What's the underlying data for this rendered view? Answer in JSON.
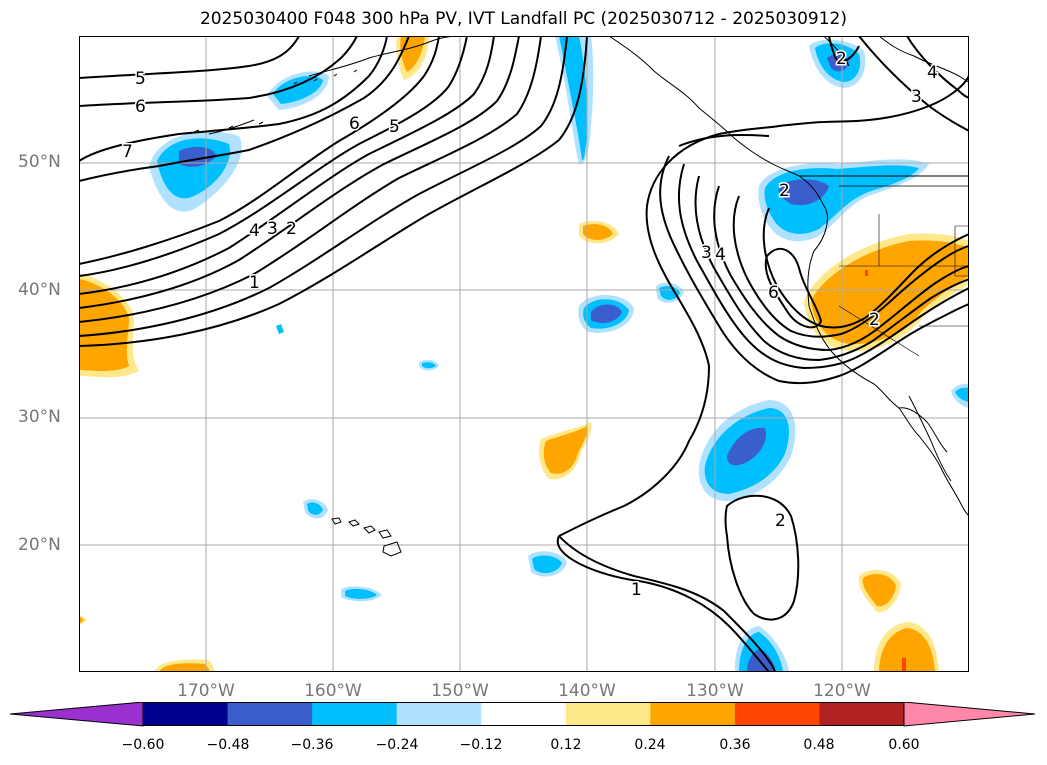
{
  "title": "2025030400 F048 300 hPa PV, IVT Landfall PC (2025030712 - 2025030912)",
  "map": {
    "lat_labels": [
      "50°N",
      "40°N",
      "30°N",
      "20°N"
    ],
    "lon_labels": [
      "170°W",
      "160°W",
      "150°W",
      "140°W",
      "130°W",
      "120°W"
    ],
    "contour_labels": [
      "5",
      "6",
      "7",
      "6",
      "5",
      "4",
      "3",
      "2",
      "1",
      "2",
      "4",
      "3",
      "2",
      "3",
      "4",
      "6",
      "2",
      "2",
      "1"
    ]
  },
  "colorbar": {
    "ticks": [
      "−0.60",
      "−0.48",
      "−0.36",
      "−0.24",
      "−0.12",
      "0.12",
      "0.24",
      "0.36",
      "0.48",
      "0.60"
    ],
    "colors": [
      "#9a30d0",
      "#000090",
      "#3a5fcd",
      "#00bfff",
      "#b0e2ff",
      "#ffffff",
      "#ffe88a",
      "#ffa500",
      "#ff4500",
      "#b22222",
      "#ff88aa"
    ]
  },
  "colors": {
    "neg_light": "#b0e2ff",
    "neg_mid": "#00bfff",
    "neg_dark": "#3a5fcd",
    "pos_light": "#ffe88a",
    "pos_mid": "#ffa500",
    "pos_dark": "#ff4500",
    "grid": "#aaaaaa",
    "contour": "#000000"
  }
}
